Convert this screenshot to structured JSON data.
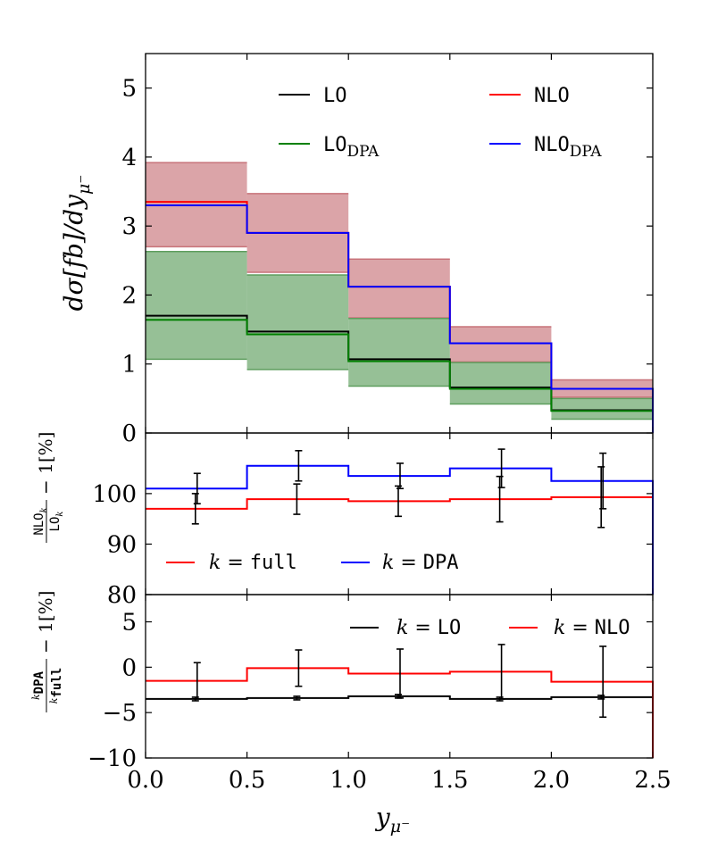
{
  "chart_data": {
    "type": "step",
    "x_label_base": "y",
    "x_label_sub": "μ⁻",
    "x_edges": [
      0.0,
      0.5,
      1.0,
      1.5,
      2.0,
      2.5
    ],
    "x_ticks": [
      "0.0",
      "0.5",
      "1.0",
      "1.5",
      "2.0",
      "2.5"
    ],
    "panels": [
      {
        "id": "top",
        "ylabel": "dσ[fb]/dy",
        "ylabel_sub": "μ⁻",
        "ylim": [
          0,
          5.5
        ],
        "yticks": [
          "0",
          "1",
          "2",
          "3",
          "4",
          "5"
        ],
        "ytick_values": [
          0,
          1,
          2,
          3,
          4,
          5
        ],
        "series": [
          {
            "name": "LO",
            "color": "#000000",
            "values": [
              1.7,
              1.47,
              1.07,
              0.66,
              0.33
            ]
          },
          {
            "name": "NLO",
            "color": "#ff0000",
            "values": [
              3.35,
              2.9,
              2.12,
              1.3,
              0.64
            ]
          },
          {
            "name": "LO_DPA",
            "color": "#008000",
            "values": [
              1.64,
              1.43,
              1.04,
              0.64,
              0.32
            ]
          },
          {
            "name": "NLO_DPA",
            "color": "#0000ff",
            "values": [
              3.3,
              2.9,
              2.12,
              1.3,
              0.64
            ]
          }
        ],
        "bands": [
          {
            "name": "NLO scale band",
            "color": "#c8737a",
            "lo": [
              2.7,
              2.33,
              1.67,
              1.03,
              0.52
            ],
            "hi": [
              3.92,
              3.47,
              2.52,
              1.54,
              0.77
            ]
          },
          {
            "name": "LO scale band",
            "color": "#5e9e5e",
            "lo": [
              1.07,
              0.92,
              0.68,
              0.42,
              0.2
            ],
            "hi": [
              2.63,
              2.29,
              1.66,
              1.02,
              0.5
            ]
          }
        ],
        "legend": [
          {
            "label": "LO",
            "sub": "",
            "color": "#000000"
          },
          {
            "label": "NLO",
            "sub": "",
            "color": "#ff0000"
          },
          {
            "label": "LO",
            "sub": "DPA",
            "color": "#008000"
          },
          {
            "label": "NLO",
            "sub": "DPA",
            "color": "#0000ff"
          }
        ]
      },
      {
        "id": "middle",
        "ylabel_num": "NLO",
        "ylabel_den": "LO",
        "ylabel_subscript": "k",
        "ylabel_suffix": "− 1[%]",
        "ylim": [
          80,
          112
        ],
        "yticks": [
          "80",
          "90",
          "100"
        ],
        "ytick_values": [
          80,
          90,
          100
        ],
        "series": [
          {
            "name": "k = full",
            "color": "#ff0000",
            "values": [
              97.0,
              98.9,
              98.5,
              98.9,
              99.3
            ],
            "errors": [
              3.0,
              3.0,
              3.0,
              4.5,
              6.0
            ]
          },
          {
            "name": "k = DPA",
            "color": "#0000ff",
            "values": [
              101.0,
              105.5,
              103.5,
              105.0,
              102.5
            ],
            "errors": [
              3.0,
              3.0,
              2.5,
              3.8,
              5.5
            ]
          }
        ],
        "legend": [
          {
            "prefix": "k = ",
            "label": "full",
            "color": "#ff0000"
          },
          {
            "prefix": "k = ",
            "label": "DPA",
            "color": "#0000ff"
          }
        ]
      },
      {
        "id": "bottom",
        "ylabel_num": "DPA",
        "ylabel_den": "full",
        "ylabel_base": "k",
        "ylabel_suffix": "− 1[%]",
        "ylim": [
          -10,
          8
        ],
        "yticks": [
          "−10",
          "−5",
          "0",
          "5"
        ],
        "ytick_values": [
          -10,
          -5,
          0,
          5
        ],
        "series": [
          {
            "name": "k = LO",
            "color": "#000000",
            "values": [
              -3.5,
              -3.4,
              -3.2,
              -3.5,
              -3.3
            ],
            "errors": [
              0.2,
              0.2,
              0.2,
              0.2,
              0.2
            ]
          },
          {
            "name": "k = NLO",
            "color": "#ff0000",
            "values": [
              -1.5,
              -0.1,
              -0.7,
              -0.5,
              -1.6
            ],
            "errors": [
              2.0,
              2.0,
              2.7,
              3.0,
              3.9
            ]
          }
        ],
        "legend": [
          {
            "prefix": "k = ",
            "label": "LO",
            "color": "#000000"
          },
          {
            "prefix": "k = ",
            "label": "NLO",
            "color": "#ff0000"
          }
        ]
      }
    ]
  }
}
